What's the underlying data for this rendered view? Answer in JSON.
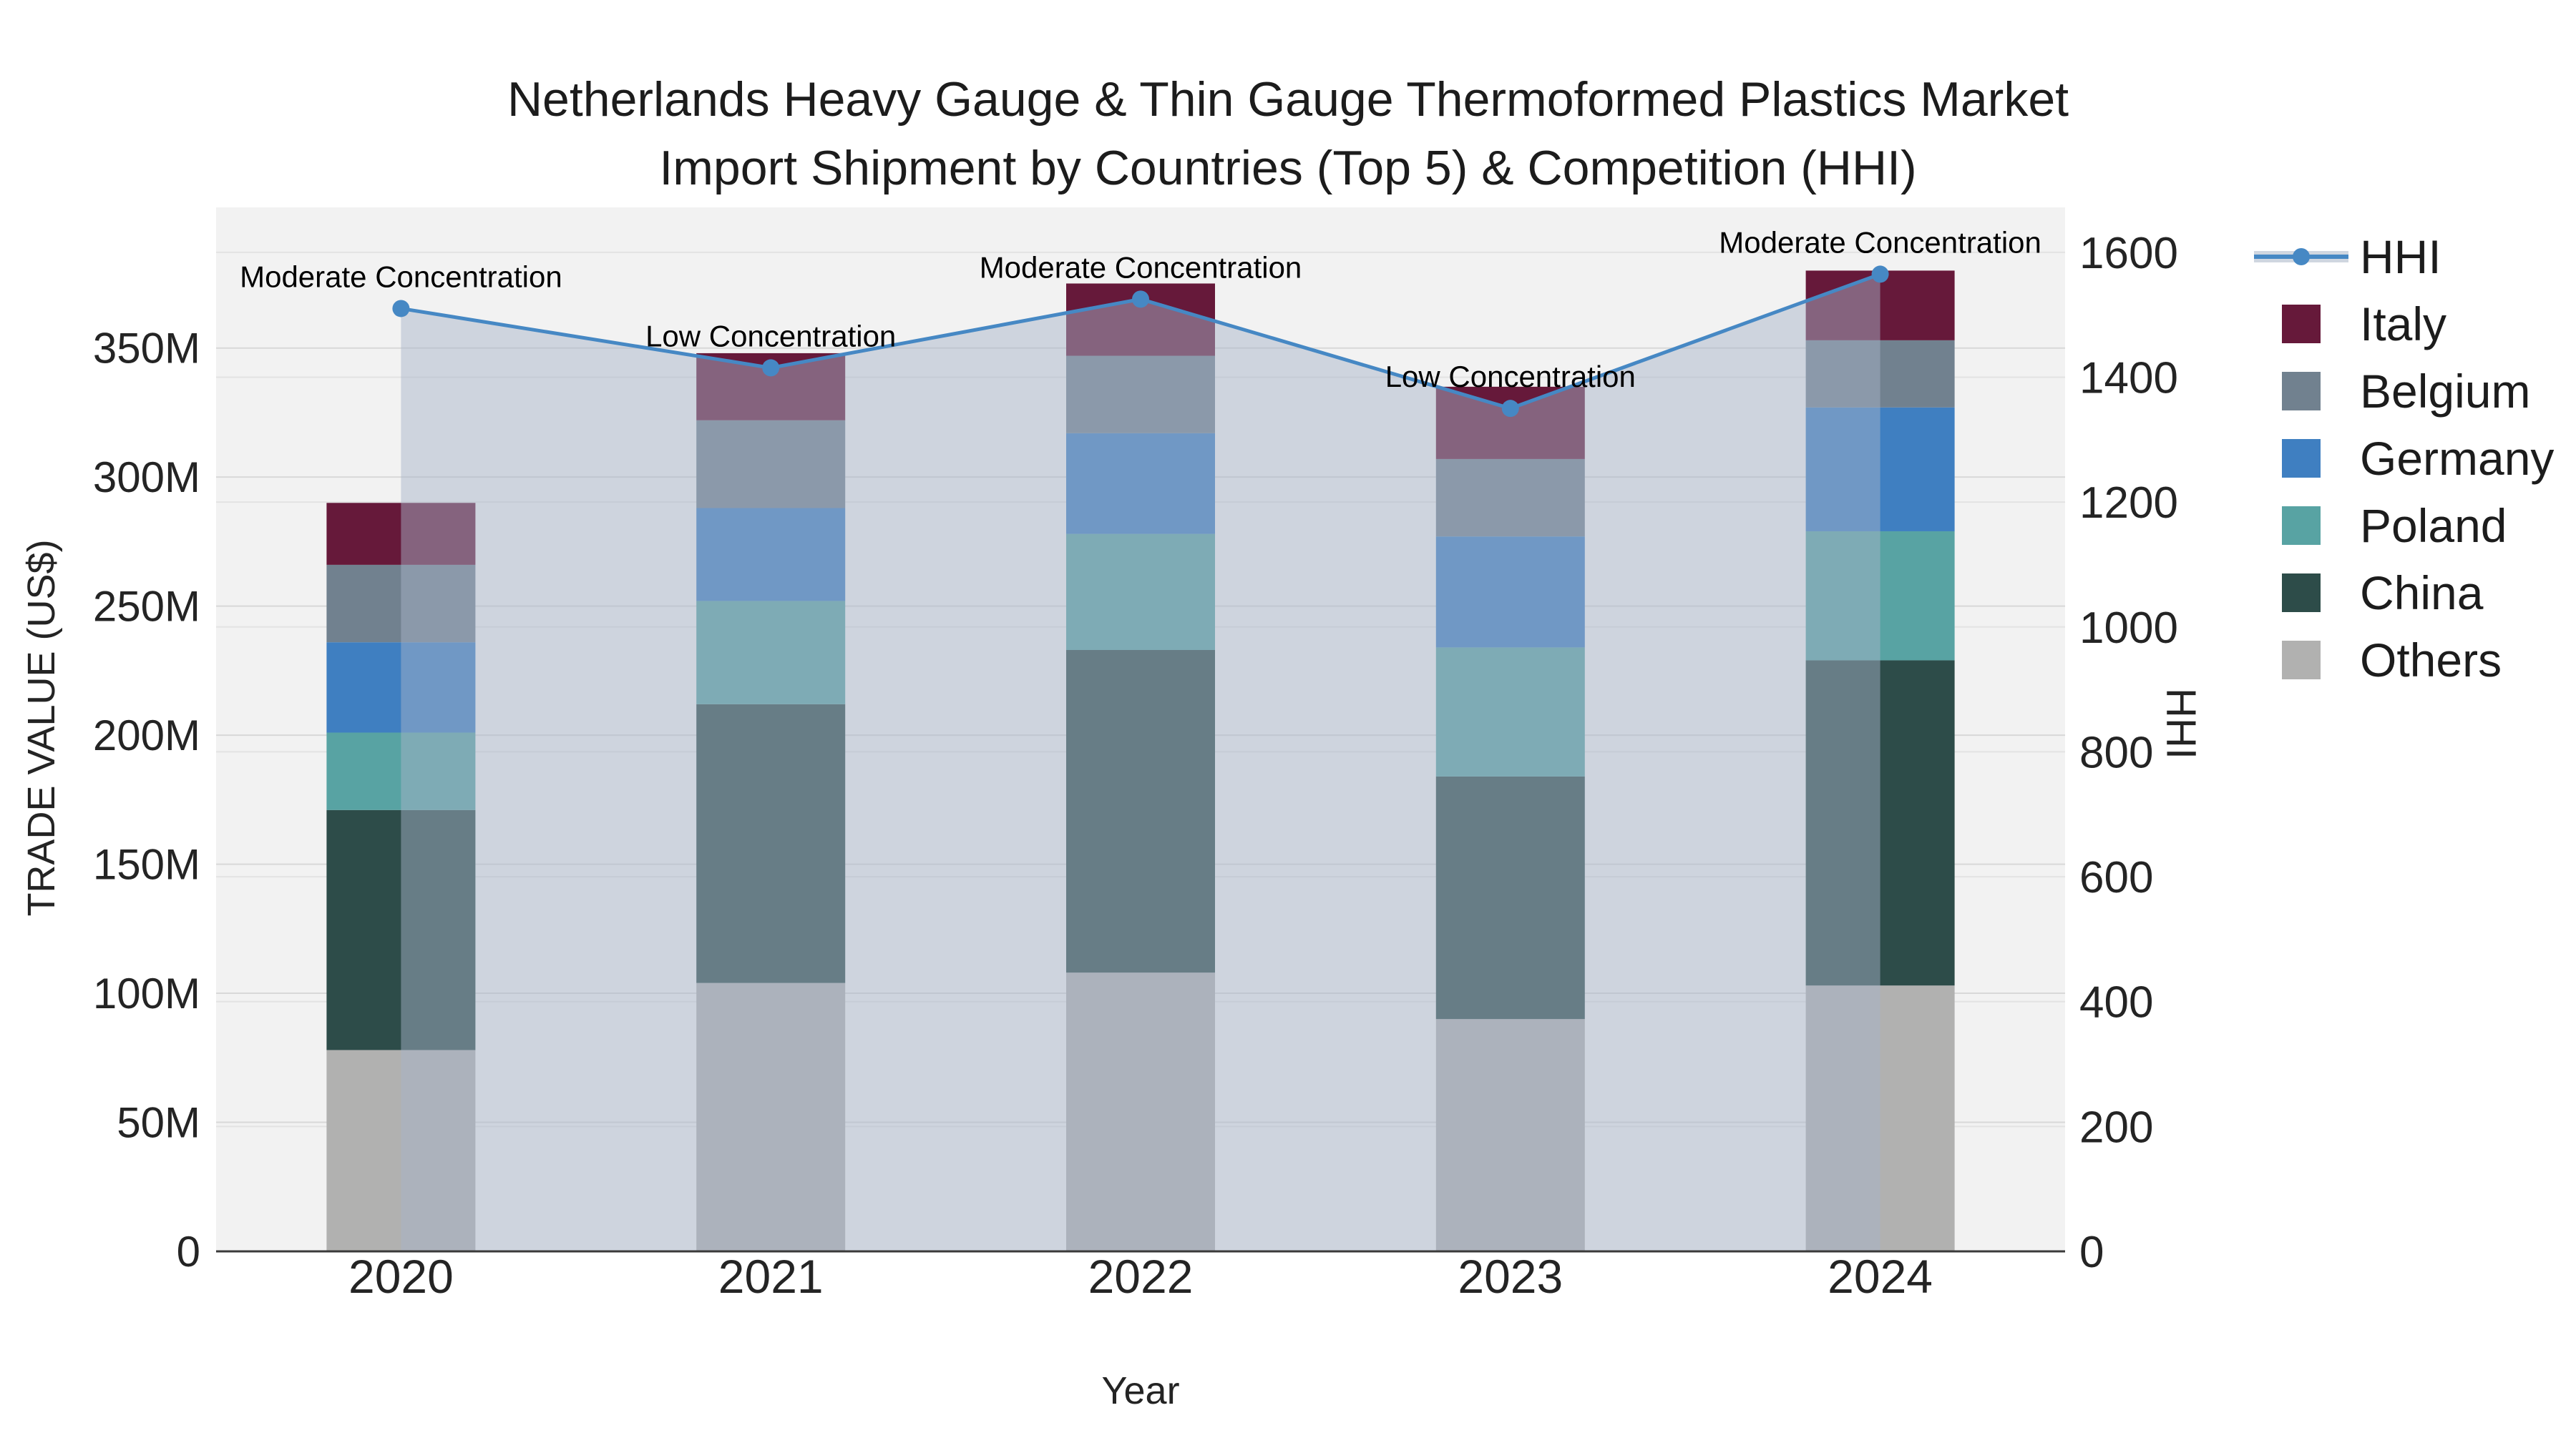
{
  "title": {
    "line1": "Netherlands Heavy Gauge & Thin Gauge Thermoformed Plastics Market",
    "line2": "Import Shipment by Countries (Top 5) & Competition (HHI)"
  },
  "axes": {
    "x_title": "Year",
    "left_title": "TRADE VALUE (US$)",
    "right_title": "HHI"
  },
  "legend": {
    "items": [
      {
        "label": "HHI",
        "type": "line",
        "color": "#4688c4"
      },
      {
        "label": "Italy",
        "type": "square",
        "color": "#66193a"
      },
      {
        "label": "Belgium",
        "type": "square",
        "color": "#71818f"
      },
      {
        "label": "Germany",
        "type": "square",
        "color": "#3f7fc1"
      },
      {
        "label": "Poland",
        "type": "square",
        "color": "#58a3a3"
      },
      {
        "label": "China",
        "type": "square",
        "color": "#2d4c49"
      },
      {
        "label": "Others",
        "type": "square",
        "color": "#b1b1b0"
      }
    ]
  },
  "chart_data": {
    "type": "combo_stacked_bar_line",
    "title": "Netherlands Heavy Gauge & Thin Gauge Thermoformed Plastics Market Import Shipment by Countries (Top 5) & Competition (HHI)",
    "xlabel": "Year",
    "ylabel_left": "TRADE VALUE (US$)",
    "ylabel_right": "HHI",
    "categories": [
      "2020",
      "2021",
      "2022",
      "2023",
      "2024"
    ],
    "bar_unit": "M US$ (millions)",
    "stack_order_bottom_to_top": [
      "Others",
      "China",
      "Poland",
      "Germany",
      "Belgium",
      "Italy"
    ],
    "series": [
      {
        "name": "Italy",
        "color": "#66193a",
        "values": [
          24,
          26,
          28,
          28,
          27
        ]
      },
      {
        "name": "Belgium",
        "color": "#71818f",
        "values": [
          30,
          34,
          30,
          30,
          26
        ]
      },
      {
        "name": "Germany",
        "color": "#3f7fc1",
        "values": [
          35,
          36,
          39,
          43,
          48
        ]
      },
      {
        "name": "Poland",
        "color": "#58a3a3",
        "values": [
          30,
          40,
          45,
          50,
          50
        ]
      },
      {
        "name": "China",
        "color": "#2d4c49",
        "values": [
          93,
          108,
          125,
          94,
          126
        ]
      },
      {
        "name": "Others",
        "color": "#b1b1b0",
        "values": [
          78,
          104,
          108,
          90,
          103
        ]
      }
    ],
    "bar_totals": [
      290,
      348,
      375,
      335,
      380
    ],
    "line_series": {
      "name": "HHI",
      "axis": "right",
      "color": "#4688c4",
      "fill_under": true,
      "values": [
        1510,
        1415,
        1525,
        1350,
        1565
      ]
    },
    "annotations": [
      {
        "category": "2020",
        "text": "Moderate Concentration"
      },
      {
        "category": "2021",
        "text": "Low Concentration"
      },
      {
        "category": "2022",
        "text": "Moderate Concentration"
      },
      {
        "category": "2023",
        "text": "Low Concentration"
      },
      {
        "category": "2024",
        "text": "Moderate Concentration"
      }
    ],
    "left_axis": {
      "tick_values": [
        0,
        50,
        100,
        150,
        200,
        250,
        300,
        350
      ],
      "tick_labels": [
        "0",
        "50M",
        "100M",
        "150M",
        "200M",
        "250M",
        "300M",
        "350M"
      ],
      "range": [
        0,
        404.5
      ],
      "grid": true
    },
    "right_axis": {
      "tick_values": [
        0,
        200,
        400,
        600,
        800,
        1000,
        1200,
        1400,
        1600
      ],
      "tick_labels": [
        "0",
        "200",
        "400",
        "600",
        "800",
        "1000",
        "1200",
        "1400",
        "1600"
      ],
      "range": [
        0,
        1672
      ],
      "grid": true
    },
    "plot_bg": "#f2f2f2",
    "area_fill": "rgba(167,180,200,0.48)",
    "legend_position": "right"
  }
}
